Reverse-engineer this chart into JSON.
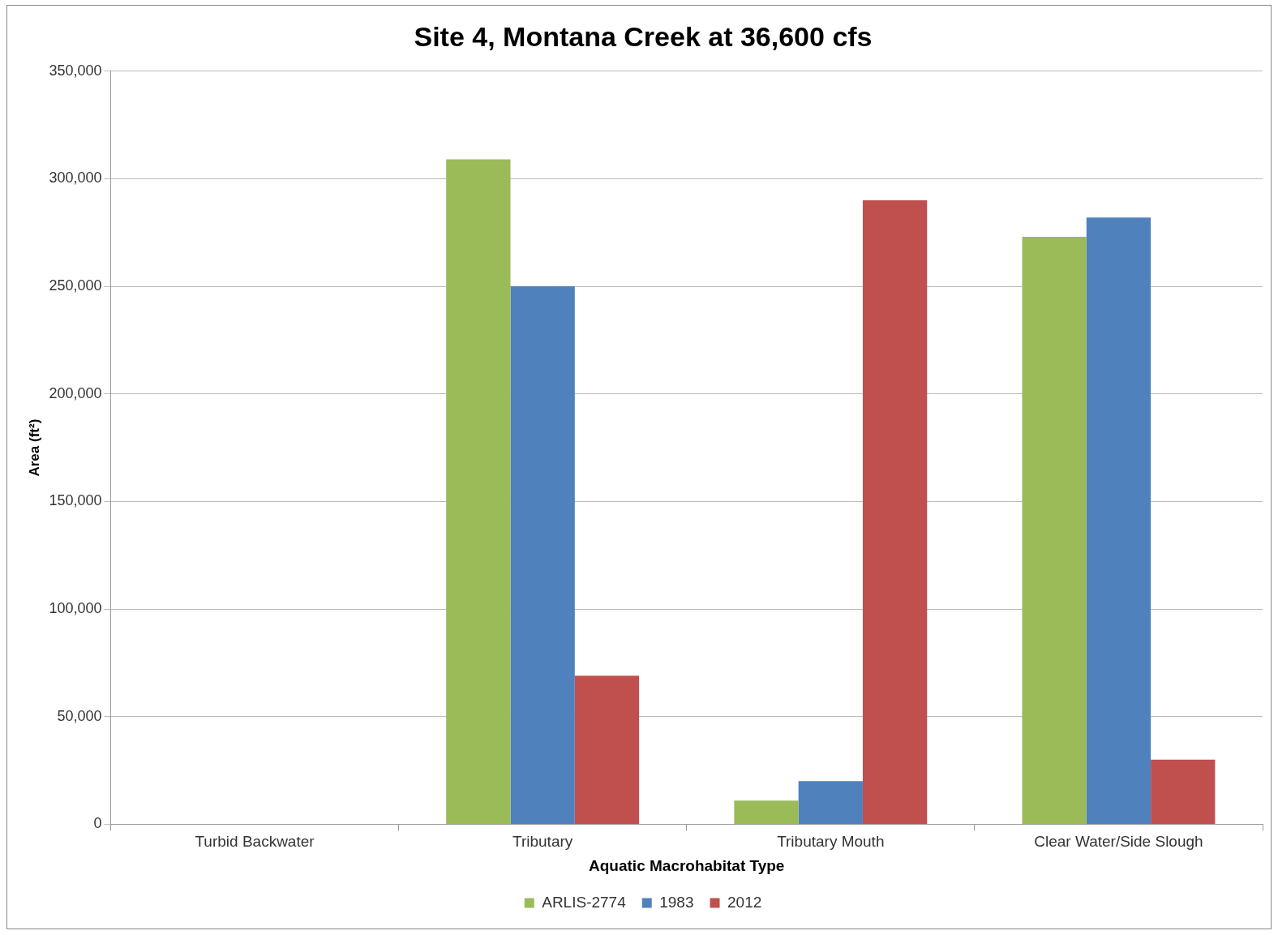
{
  "chart_data": {
    "type": "bar",
    "title": "Site 4, Montana Creek at 36,600 cfs",
    "xlabel": "Aquatic Macrohabitat Type",
    "ylabel": "Area (ft²)",
    "categories": [
      "Turbid Backwater",
      "Tributary",
      "Tributary Mouth",
      "Clear Water/Side Slough"
    ],
    "series": [
      {
        "name": "ARLIS-2774",
        "color": "#9bbb59",
        "values": [
          0,
          309000,
          11000,
          273000
        ]
      },
      {
        "name": "1983",
        "color": "#4f81bd",
        "values": [
          0,
          250000,
          20000,
          282000
        ]
      },
      {
        "name": "2012",
        "color": "#c0504d",
        "values": [
          0,
          69000,
          290000,
          30000
        ]
      }
    ],
    "ylim": [
      0,
      350000
    ],
    "yticks": [
      {
        "value": 0,
        "label": "0"
      },
      {
        "value": 50000,
        "label": "50,000"
      },
      {
        "value": 100000,
        "label": "100,000"
      },
      {
        "value": 150000,
        "label": "150,000"
      },
      {
        "value": 200000,
        "label": "200,000"
      },
      {
        "value": 250000,
        "label": "250,000"
      },
      {
        "value": 300000,
        "label": "300,000"
      },
      {
        "value": 350000,
        "label": "350,000"
      }
    ],
    "grid": "y",
    "legend": "bottom"
  }
}
